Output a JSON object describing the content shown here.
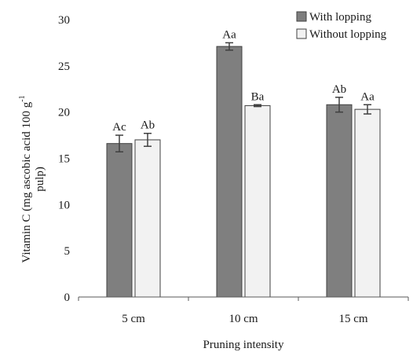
{
  "chart_data": {
    "type": "bar",
    "categories": [
      "5 cm",
      "10 cm",
      "15 cm"
    ],
    "xlabel": "Pruning intensity",
    "ylabel": "Vitamin  C (mg ascobic acid  100 g",
    "ylabel_superscript": "-1",
    "ylabel_line2": "pulp)",
    "ylim": [
      0,
      30
    ],
    "yticks": [
      0,
      5,
      10,
      15,
      20,
      25,
      30
    ],
    "grid": false,
    "legend_position": "top-right",
    "series": [
      {
        "name": "With lopping",
        "color": "#7f7f7f",
        "values": [
          16.6,
          27.1,
          20.8
        ],
        "errors": [
          0.9,
          0.4,
          0.8
        ],
        "labels": [
          "Ac",
          "Aa",
          "Ab"
        ]
      },
      {
        "name": "Without lopping",
        "color": "#f2f2f2",
        "values": [
          17.0,
          20.7,
          20.3
        ],
        "errors": [
          0.7,
          0.1,
          0.5
        ],
        "labels": [
          "Ab",
          "Ba",
          "Aa"
        ]
      }
    ]
  }
}
